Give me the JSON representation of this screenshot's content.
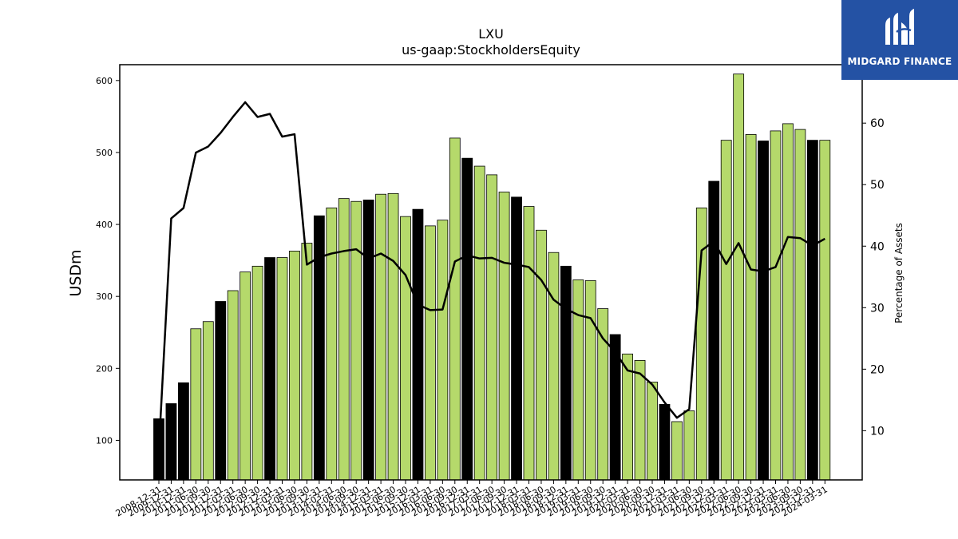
{
  "chart_data": {
    "type": "bar",
    "title": "LXU",
    "subtitle": "us-gaap:StockholdersEquity",
    "ylabel": "USDm",
    "y2label": "Percentage of Assets",
    "ylim": [
      45,
      622
    ],
    "y2lim": [
      2,
      69.5
    ],
    "yticks": [
      100,
      200,
      300,
      400,
      500,
      600
    ],
    "y2ticks": [
      10,
      20,
      30,
      40,
      50,
      60
    ],
    "categories": [
      "2008-12-31",
      "2009-12-31",
      "2010-12-31",
      "2011-06-30",
      "2011-09-30",
      "2011-12-31",
      "2012-03-31",
      "2012-06-30",
      "2012-09-30",
      "2012-12-31",
      "2013-03-31",
      "2013-06-30",
      "2013-09-30",
      "2013-12-31",
      "2014-03-31",
      "2014-06-30",
      "2014-09-30",
      "2014-12-31",
      "2015-03-31",
      "2015-06-30",
      "2015-09-30",
      "2015-12-31",
      "2016-03-31",
      "2016-06-30",
      "2016-09-30",
      "2016-12-31",
      "2017-03-31",
      "2017-06-30",
      "2017-09-30",
      "2017-12-31",
      "2018-03-31",
      "2018-06-30",
      "2018-09-30",
      "2018-12-31",
      "2019-03-31",
      "2019-06-30",
      "2019-09-30",
      "2019-12-31",
      "2020-03-31",
      "2020-06-30",
      "2020-09-30",
      "2020-12-31",
      "2021-03-31",
      "2021-06-30",
      "2021-09-30",
      "2021-12-31",
      "2022-03-31",
      "2022-06-30",
      "2022-09-30",
      "2022-12-31",
      "2023-03-31",
      "2023-06-30",
      "2023-09-30",
      "2023-12-31",
      "2024-03-31"
    ],
    "series": [
      {
        "kind": "bar",
        "values": [
          130,
          151,
          180,
          255,
          265,
          293,
          308,
          334,
          342,
          354,
          354,
          363,
          374,
          412,
          423,
          436,
          432,
          434,
          442,
          443,
          411,
          421,
          398,
          406,
          520,
          492,
          481,
          469,
          445,
          438,
          425,
          392,
          361,
          342,
          323,
          322,
          283,
          247,
          220,
          211,
          181,
          150,
          126,
          141,
          423,
          460,
          517,
          609,
          525,
          516,
          530,
          540,
          532,
          517,
          517
        ],
        "annual": [
          true,
          true,
          true,
          false,
          false,
          true,
          false,
          false,
          false,
          true,
          false,
          false,
          false,
          true,
          false,
          false,
          false,
          true,
          false,
          false,
          false,
          true,
          false,
          false,
          false,
          true,
          false,
          false,
          false,
          true,
          false,
          false,
          false,
          true,
          false,
          false,
          false,
          true,
          false,
          false,
          false,
          true,
          false,
          false,
          false,
          true,
          false,
          false,
          false,
          true,
          false,
          false,
          false,
          true,
          false
        ]
      },
      {
        "kind": "line",
        "axis": "right",
        "values": [
          7,
          44.5,
          46.2,
          55.2,
          56.2,
          58.4,
          61,
          63.4,
          61,
          61.5,
          57.8,
          58.2,
          37,
          38.2,
          38.8,
          39.2,
          39.5,
          38,
          38.8,
          37.6,
          35.3,
          30.5,
          29.6,
          29.7,
          37.5,
          38.5,
          38,
          38.1,
          37.3,
          37,
          36.6,
          34.5,
          31.3,
          29.8,
          28.8,
          28.3,
          25,
          22.8,
          19.8,
          19.3,
          17.5,
          14.6,
          12.1,
          13.5,
          39.3,
          40.8,
          37.1,
          40.5,
          36.2,
          35.9,
          36.6,
          41.5,
          41.3,
          40.1,
          41.2
        ]
      }
    ],
    "colors": {
      "regular": "#b5d96b",
      "annual": "#000000",
      "line": "#000000",
      "edge": "#000000"
    },
    "grid": false
  },
  "logo": {
    "text": "MIDGARD FINANCE"
  }
}
